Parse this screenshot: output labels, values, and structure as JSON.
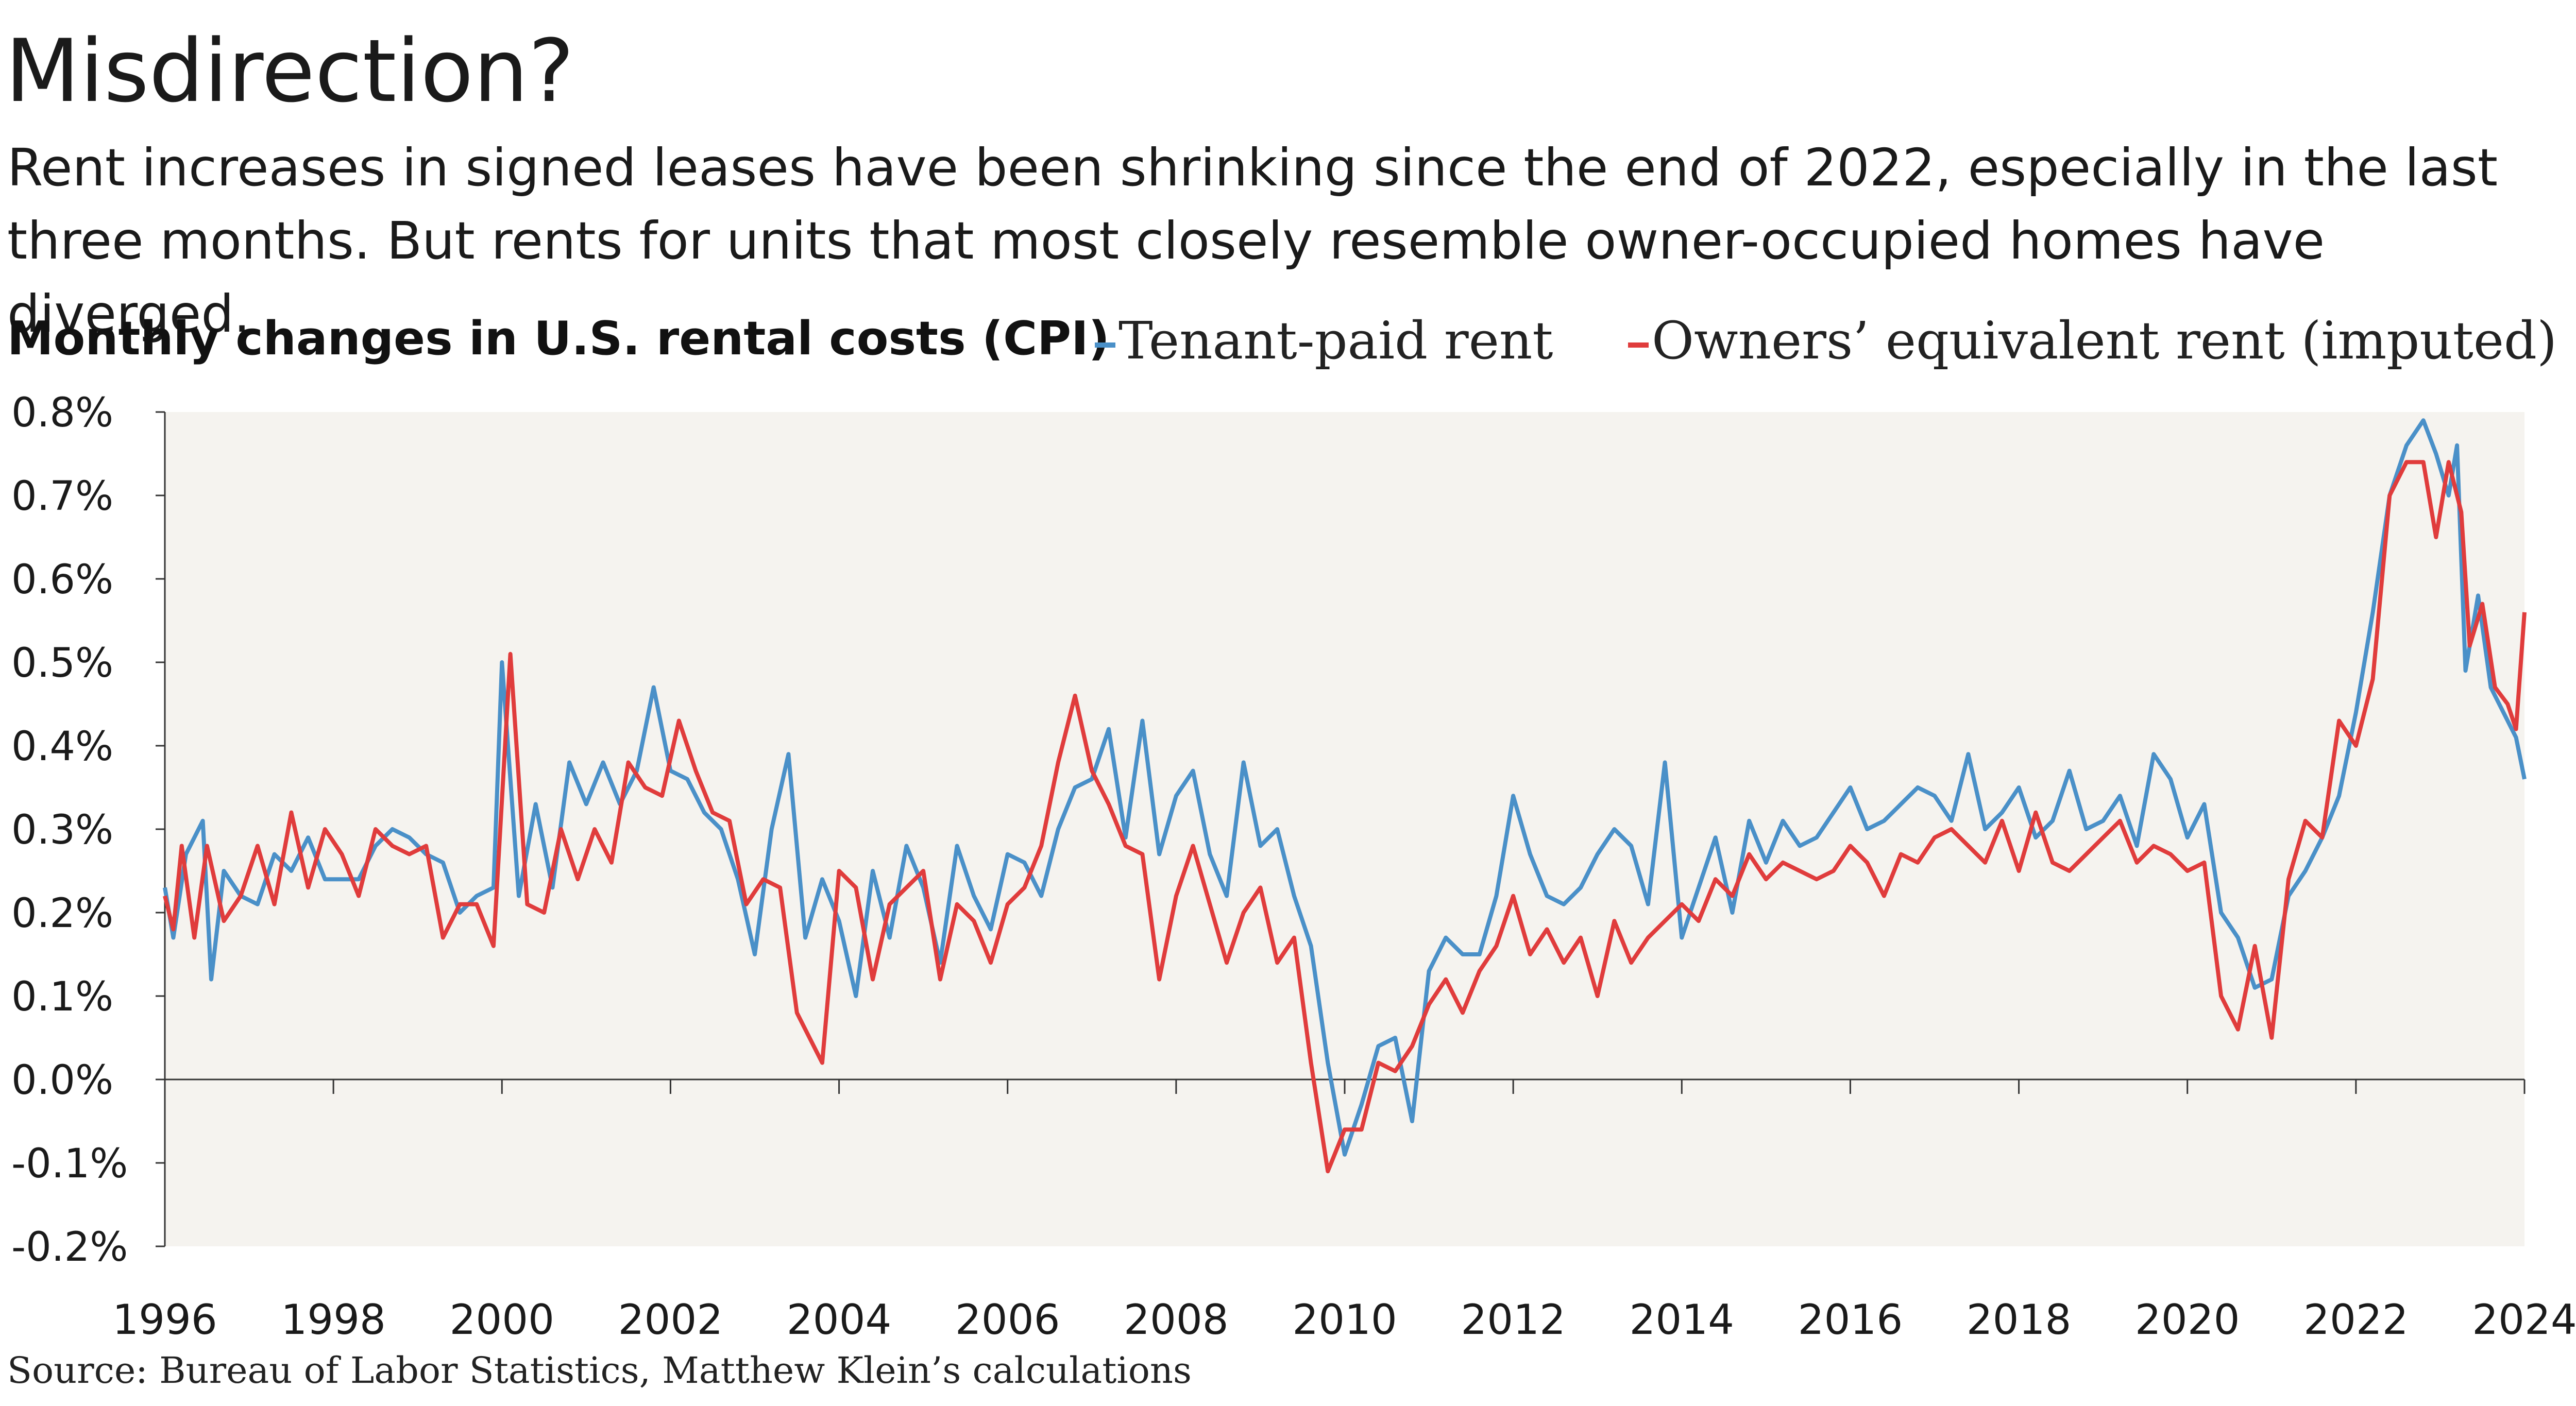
{
  "title": "Misdirection?",
  "subtitle": "Rent increases in signed leases have been shrinking since the end of 2022, especially in the last three months. But rents for units that most closely resemble owner-occupied homes have diverged.",
  "chart_heading": "Monthly changes in U.S. rental costs (CPI)",
  "source": "Source: Bureau of Labor Statistics, Matthew Klein’s calculations",
  "colors": {
    "tenant": "#4a90c8",
    "oer": "#e03c3c",
    "plot_bg": "#f5f3ef",
    "axis": "#333333"
  },
  "chart_data": {
    "type": "line",
    "title": "Monthly changes in U.S. rental costs (CPI)",
    "xlabel": "",
    "ylabel": "",
    "xlim": [
      1996,
      2024
    ],
    "ylim": [
      -0.2,
      0.8
    ],
    "y_ticks": [
      -0.2,
      -0.1,
      0.0,
      0.1,
      0.2,
      0.3,
      0.4,
      0.5,
      0.6,
      0.7,
      0.8
    ],
    "y_tick_labels": [
      "-0.2%",
      "-0.1%",
      "0.0%",
      "0.1%",
      "0.2%",
      "0.3%",
      "0.4%",
      "0.5%",
      "0.6%",
      "0.7%",
      "0.8%"
    ],
    "x_ticks": [
      1996,
      1998,
      2000,
      2002,
      2004,
      2006,
      2008,
      2010,
      2012,
      2014,
      2016,
      2018,
      2020,
      2022,
      2024
    ],
    "x_tick_labels": [
      "1996",
      "1998",
      "2000",
      "2002",
      "2004",
      "2006",
      "2008",
      "2010",
      "2012",
      "2014",
      "2016",
      "2018",
      "2020",
      "2022",
      "2024"
    ],
    "grid": false,
    "legend": "top",
    "series": [
      {
        "name": "Tenant-paid rent",
        "color": "#4a90c8",
        "points": [
          [
            1996.0,
            0.23
          ],
          [
            1996.1,
            0.17
          ],
          [
            1996.25,
            0.27
          ],
          [
            1996.45,
            0.31
          ],
          [
            1996.55,
            0.12
          ],
          [
            1996.7,
            0.25
          ],
          [
            1996.9,
            0.22
          ],
          [
            1997.1,
            0.21
          ],
          [
            1997.3,
            0.27
          ],
          [
            1997.5,
            0.25
          ],
          [
            1997.7,
            0.29
          ],
          [
            1997.9,
            0.24
          ],
          [
            1998.1,
            0.24
          ],
          [
            1998.3,
            0.24
          ],
          [
            1998.5,
            0.28
          ],
          [
            1998.7,
            0.3
          ],
          [
            1998.9,
            0.29
          ],
          [
            1999.1,
            0.27
          ],
          [
            1999.3,
            0.26
          ],
          [
            1999.5,
            0.2
          ],
          [
            1999.7,
            0.22
          ],
          [
            1999.9,
            0.23
          ],
          [
            2000.0,
            0.5
          ],
          [
            2000.2,
            0.22
          ],
          [
            2000.4,
            0.33
          ],
          [
            2000.6,
            0.23
          ],
          [
            2000.8,
            0.38
          ],
          [
            2001.0,
            0.33
          ],
          [
            2001.2,
            0.38
          ],
          [
            2001.4,
            0.33
          ],
          [
            2001.6,
            0.37
          ],
          [
            2001.8,
            0.47
          ],
          [
            2002.0,
            0.37
          ],
          [
            2002.2,
            0.36
          ],
          [
            2002.4,
            0.32
          ],
          [
            2002.6,
            0.3
          ],
          [
            2002.8,
            0.24
          ],
          [
            2003.0,
            0.15
          ],
          [
            2003.2,
            0.3
          ],
          [
            2003.4,
            0.39
          ],
          [
            2003.6,
            0.17
          ],
          [
            2003.8,
            0.24
          ],
          [
            2004.0,
            0.19
          ],
          [
            2004.2,
            0.1
          ],
          [
            2004.4,
            0.25
          ],
          [
            2004.6,
            0.17
          ],
          [
            2004.8,
            0.28
          ],
          [
            2005.0,
            0.23
          ],
          [
            2005.2,
            0.14
          ],
          [
            2005.4,
            0.28
          ],
          [
            2005.6,
            0.22
          ],
          [
            2005.8,
            0.18
          ],
          [
            2006.0,
            0.27
          ],
          [
            2006.2,
            0.26
          ],
          [
            2006.4,
            0.22
          ],
          [
            2006.6,
            0.3
          ],
          [
            2006.8,
            0.35
          ],
          [
            2007.0,
            0.36
          ],
          [
            2007.2,
            0.42
          ],
          [
            2007.4,
            0.29
          ],
          [
            2007.6,
            0.43
          ],
          [
            2007.8,
            0.27
          ],
          [
            2008.0,
            0.34
          ],
          [
            2008.2,
            0.37
          ],
          [
            2008.4,
            0.27
          ],
          [
            2008.6,
            0.22
          ],
          [
            2008.8,
            0.38
          ],
          [
            2009.0,
            0.28
          ],
          [
            2009.2,
            0.3
          ],
          [
            2009.4,
            0.22
          ],
          [
            2009.6,
            0.16
          ],
          [
            2009.8,
            0.02
          ],
          [
            2010.0,
            -0.09
          ],
          [
            2010.2,
            -0.03
          ],
          [
            2010.4,
            0.04
          ],
          [
            2010.6,
            0.05
          ],
          [
            2010.8,
            -0.05
          ],
          [
            2011.0,
            0.13
          ],
          [
            2011.2,
            0.17
          ],
          [
            2011.4,
            0.15
          ],
          [
            2011.6,
            0.15
          ],
          [
            2011.8,
            0.22
          ],
          [
            2012.0,
            0.34
          ],
          [
            2012.2,
            0.27
          ],
          [
            2012.4,
            0.22
          ],
          [
            2012.6,
            0.21
          ],
          [
            2012.8,
            0.23
          ],
          [
            2013.0,
            0.27
          ],
          [
            2013.2,
            0.3
          ],
          [
            2013.4,
            0.28
          ],
          [
            2013.6,
            0.21
          ],
          [
            2013.8,
            0.38
          ],
          [
            2014.0,
            0.17
          ],
          [
            2014.2,
            0.23
          ],
          [
            2014.4,
            0.29
          ],
          [
            2014.6,
            0.2
          ],
          [
            2014.8,
            0.31
          ],
          [
            2015.0,
            0.26
          ],
          [
            2015.2,
            0.31
          ],
          [
            2015.4,
            0.28
          ],
          [
            2015.6,
            0.29
          ],
          [
            2015.8,
            0.32
          ],
          [
            2016.0,
            0.35
          ],
          [
            2016.2,
            0.3
          ],
          [
            2016.4,
            0.31
          ],
          [
            2016.6,
            0.33
          ],
          [
            2016.8,
            0.35
          ],
          [
            2017.0,
            0.34
          ],
          [
            2017.2,
            0.31
          ],
          [
            2017.4,
            0.39
          ],
          [
            2017.6,
            0.3
          ],
          [
            2017.8,
            0.32
          ],
          [
            2018.0,
            0.35
          ],
          [
            2018.2,
            0.29
          ],
          [
            2018.4,
            0.31
          ],
          [
            2018.6,
            0.37
          ],
          [
            2018.8,
            0.3
          ],
          [
            2019.0,
            0.31
          ],
          [
            2019.2,
            0.34
          ],
          [
            2019.4,
            0.28
          ],
          [
            2019.6,
            0.39
          ],
          [
            2019.8,
            0.36
          ],
          [
            2020.0,
            0.29
          ],
          [
            2020.2,
            0.33
          ],
          [
            2020.4,
            0.2
          ],
          [
            2020.6,
            0.17
          ],
          [
            2020.8,
            0.11
          ],
          [
            2021.0,
            0.12
          ],
          [
            2021.2,
            0.22
          ],
          [
            2021.4,
            0.25
          ],
          [
            2021.6,
            0.29
          ],
          [
            2021.8,
            0.34
          ],
          [
            2022.0,
            0.44
          ],
          [
            2022.2,
            0.56
          ],
          [
            2022.4,
            0.7
          ],
          [
            2022.6,
            0.76
          ],
          [
            2022.8,
            0.79
          ],
          [
            2022.95,
            0.75
          ],
          [
            2023.1,
            0.7
          ],
          [
            2023.2,
            0.76
          ],
          [
            2023.3,
            0.49
          ],
          [
            2023.45,
            0.58
          ],
          [
            2023.6,
            0.47
          ],
          [
            2023.75,
            0.44
          ],
          [
            2023.9,
            0.41
          ],
          [
            2024.0,
            0.36
          ]
        ]
      },
      {
        "name": "Owners’ equivalent rent (imputed)",
        "color": "#e03c3c",
        "points": [
          [
            1996.0,
            0.22
          ],
          [
            1996.1,
            0.18
          ],
          [
            1996.2,
            0.28
          ],
          [
            1996.35,
            0.17
          ],
          [
            1996.5,
            0.28
          ],
          [
            1996.7,
            0.19
          ],
          [
            1996.9,
            0.22
          ],
          [
            1997.1,
            0.28
          ],
          [
            1997.3,
            0.21
          ],
          [
            1997.5,
            0.32
          ],
          [
            1997.7,
            0.23
          ],
          [
            1997.9,
            0.3
          ],
          [
            1998.1,
            0.27
          ],
          [
            1998.3,
            0.22
          ],
          [
            1998.5,
            0.3
          ],
          [
            1998.7,
            0.28
          ],
          [
            1998.9,
            0.27
          ],
          [
            1999.1,
            0.28
          ],
          [
            1999.3,
            0.17
          ],
          [
            1999.5,
            0.21
          ],
          [
            1999.7,
            0.21
          ],
          [
            1999.9,
            0.16
          ],
          [
            2000.1,
            0.51
          ],
          [
            2000.3,
            0.21
          ],
          [
            2000.5,
            0.2
          ],
          [
            2000.7,
            0.3
          ],
          [
            2000.9,
            0.24
          ],
          [
            2001.1,
            0.3
          ],
          [
            2001.3,
            0.26
          ],
          [
            2001.5,
            0.38
          ],
          [
            2001.7,
            0.35
          ],
          [
            2001.9,
            0.34
          ],
          [
            2002.1,
            0.43
          ],
          [
            2002.3,
            0.37
          ],
          [
            2002.5,
            0.32
          ],
          [
            2002.7,
            0.31
          ],
          [
            2002.9,
            0.21
          ],
          [
            2003.1,
            0.24
          ],
          [
            2003.3,
            0.23
          ],
          [
            2003.5,
            0.08
          ],
          [
            2003.6,
            0.06
          ],
          [
            2003.8,
            0.02
          ],
          [
            2004.0,
            0.25
          ],
          [
            2004.2,
            0.23
          ],
          [
            2004.4,
            0.12
          ],
          [
            2004.6,
            0.21
          ],
          [
            2004.8,
            0.23
          ],
          [
            2005.0,
            0.25
          ],
          [
            2005.2,
            0.12
          ],
          [
            2005.4,
            0.21
          ],
          [
            2005.6,
            0.19
          ],
          [
            2005.8,
            0.14
          ],
          [
            2006.0,
            0.21
          ],
          [
            2006.2,
            0.23
          ],
          [
            2006.4,
            0.28
          ],
          [
            2006.6,
            0.38
          ],
          [
            2006.8,
            0.46
          ],
          [
            2007.0,
            0.37
          ],
          [
            2007.2,
            0.33
          ],
          [
            2007.4,
            0.28
          ],
          [
            2007.6,
            0.27
          ],
          [
            2007.8,
            0.12
          ],
          [
            2008.0,
            0.22
          ],
          [
            2008.2,
            0.28
          ],
          [
            2008.4,
            0.21
          ],
          [
            2008.6,
            0.14
          ],
          [
            2008.8,
            0.2
          ],
          [
            2009.0,
            0.23
          ],
          [
            2009.2,
            0.14
          ],
          [
            2009.4,
            0.17
          ],
          [
            2009.6,
            0.02
          ],
          [
            2009.8,
            -0.11
          ],
          [
            2010.0,
            -0.06
          ],
          [
            2010.2,
            -0.06
          ],
          [
            2010.4,
            0.02
          ],
          [
            2010.6,
            0.01
          ],
          [
            2010.8,
            0.04
          ],
          [
            2011.0,
            0.09
          ],
          [
            2011.2,
            0.12
          ],
          [
            2011.4,
            0.08
          ],
          [
            2011.6,
            0.13
          ],
          [
            2011.8,
            0.16
          ],
          [
            2012.0,
            0.22
          ],
          [
            2012.2,
            0.15
          ],
          [
            2012.4,
            0.18
          ],
          [
            2012.6,
            0.14
          ],
          [
            2012.8,
            0.17
          ],
          [
            2013.0,
            0.1
          ],
          [
            2013.2,
            0.19
          ],
          [
            2013.4,
            0.14
          ],
          [
            2013.6,
            0.17
          ],
          [
            2013.8,
            0.19
          ],
          [
            2014.0,
            0.21
          ],
          [
            2014.2,
            0.19
          ],
          [
            2014.4,
            0.24
          ],
          [
            2014.6,
            0.22
          ],
          [
            2014.8,
            0.27
          ],
          [
            2015.0,
            0.24
          ],
          [
            2015.2,
            0.26
          ],
          [
            2015.4,
            0.25
          ],
          [
            2015.6,
            0.24
          ],
          [
            2015.8,
            0.25
          ],
          [
            2016.0,
            0.28
          ],
          [
            2016.2,
            0.26
          ],
          [
            2016.4,
            0.22
          ],
          [
            2016.6,
            0.27
          ],
          [
            2016.8,
            0.26
          ],
          [
            2017.0,
            0.29
          ],
          [
            2017.2,
            0.3
          ],
          [
            2017.4,
            0.28
          ],
          [
            2017.6,
            0.26
          ],
          [
            2017.8,
            0.31
          ],
          [
            2018.0,
            0.25
          ],
          [
            2018.2,
            0.32
          ],
          [
            2018.4,
            0.26
          ],
          [
            2018.6,
            0.25
          ],
          [
            2018.8,
            0.27
          ],
          [
            2019.0,
            0.29
          ],
          [
            2019.2,
            0.31
          ],
          [
            2019.4,
            0.26
          ],
          [
            2019.6,
            0.28
          ],
          [
            2019.8,
            0.27
          ],
          [
            2020.0,
            0.25
          ],
          [
            2020.2,
            0.26
          ],
          [
            2020.4,
            0.1
          ],
          [
            2020.6,
            0.06
          ],
          [
            2020.8,
            0.16
          ],
          [
            2021.0,
            0.05
          ],
          [
            2021.2,
            0.24
          ],
          [
            2021.4,
            0.31
          ],
          [
            2021.6,
            0.29
          ],
          [
            2021.8,
            0.43
          ],
          [
            2022.0,
            0.4
          ],
          [
            2022.2,
            0.48
          ],
          [
            2022.4,
            0.7
          ],
          [
            2022.6,
            0.74
          ],
          [
            2022.8,
            0.74
          ],
          [
            2022.95,
            0.65
          ],
          [
            2023.1,
            0.74
          ],
          [
            2023.25,
            0.68
          ],
          [
            2023.35,
            0.52
          ],
          [
            2023.5,
            0.57
          ],
          [
            2023.65,
            0.47
          ],
          [
            2023.8,
            0.45
          ],
          [
            2023.9,
            0.42
          ],
          [
            2024.0,
            0.56
          ]
        ]
      }
    ]
  }
}
